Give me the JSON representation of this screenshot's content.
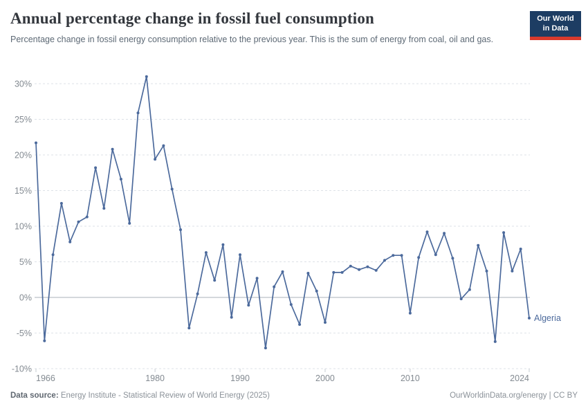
{
  "header": {
    "title": "Annual percentage change in fossil fuel consumption",
    "subtitle": "Percentage change in fossil energy consumption relative to the previous year. This is the sum of energy from coal, oil and gas.",
    "logo": {
      "line1": "Our World",
      "line2": "in Data"
    }
  },
  "chart_data": {
    "type": "line",
    "title": "Annual percentage change in fossil fuel consumption",
    "unit": "%",
    "entity": "Algeria",
    "x": [
      1966,
      1967,
      1968,
      1969,
      1970,
      1971,
      1972,
      1973,
      1974,
      1975,
      1976,
      1977,
      1978,
      1979,
      1980,
      1981,
      1982,
      1983,
      1984,
      1985,
      1986,
      1987,
      1988,
      1989,
      1990,
      1991,
      1992,
      1993,
      1994,
      1995,
      1996,
      1997,
      1998,
      1999,
      2000,
      2001,
      2002,
      2003,
      2004,
      2005,
      2006,
      2007,
      2008,
      2009,
      2010,
      2011,
      2012,
      2013,
      2014,
      2015,
      2016,
      2017,
      2018,
      2019,
      2020,
      2021,
      2022,
      2023,
      2024
    ],
    "series": [
      {
        "name": "Algeria",
        "color": "#4c6a9c",
        "values": [
          21.7,
          -6.1,
          6,
          13.2,
          7.8,
          10.6,
          11.3,
          18.2,
          12.5,
          20.8,
          16.6,
          10.4,
          25.9,
          31,
          19.4,
          21.3,
          15.2,
          9.5,
          -4.3,
          0.5,
          6.3,
          2.4,
          7.4,
          -2.8,
          6,
          -1.1,
          2.7,
          -7.1,
          1.5,
          3.6,
          -1,
          -3.8,
          3.4,
          0.9,
          -3.5,
          3.5,
          3.5,
          4.4,
          3.9,
          4.3,
          3.8,
          5.2,
          5.9,
          5.9,
          -2.2,
          5.6,
          9.2,
          6,
          9,
          5.5,
          -0.2,
          1.1,
          7.3,
          3.7,
          -6.2,
          9.1,
          3.7,
          6.8,
          -2.9
        ]
      }
    ],
    "xlabel": "",
    "ylabel": "",
    "ylim": [
      -10,
      30
    ],
    "xlim": [
      1966,
      2024
    ],
    "yticks": [
      -10,
      -5,
      0,
      5,
      10,
      15,
      20,
      25,
      30
    ],
    "xticks": [
      1966,
      1980,
      1990,
      2000,
      2010,
      2024
    ],
    "grid": "horizontal dashed gridlines, solid zero line",
    "legend_position": "end-of-line label"
  },
  "colors": {
    "line": "#4c6a9c",
    "grid": "#dde2e7",
    "zero_line": "#a8b1b9",
    "tick_mark": "#c6ccd2",
    "axis_text": "#838a91",
    "title": "#33373d",
    "subtitle": "#5d6975",
    "footer_text": "#8b9299",
    "logo_bg": "#1d3d63",
    "logo_stripe": "#d93a2d"
  },
  "footer": {
    "datasource_label": "Data source:",
    "datasource": "Energy Institute - Statistical Review of World Energy (2025)",
    "credit": "OurWorldinData.org/energy | CC BY"
  }
}
